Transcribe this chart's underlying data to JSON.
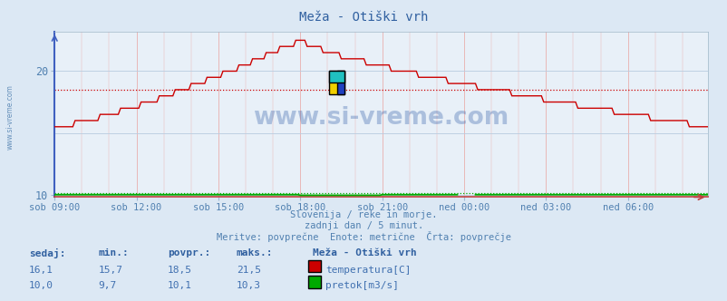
{
  "title": "Meža - Otiški vrh",
  "bg_color": "#dce8f4",
  "plot_bg_color": "#e8f0f8",
  "grid_color_h": "#b8cce0",
  "grid_color_v": "#e8b8b8",
  "left_border_color": "#4060c0",
  "bottom_border_color": "#c04040",
  "xlabel_color": "#5080b0",
  "title_color": "#3060a0",
  "watermark": "www.si-vreme.com",
  "subtitle_lines": [
    "Slovenija / reke in morje.",
    "zadnji dan / 5 minut.",
    "Meritve: povprečne  Enote: metrične  Črta: povprečje"
  ],
  "xticklabels": [
    "sob 09:00",
    "sob 12:00",
    "sob 15:00",
    "sob 18:00",
    "sob 21:00",
    "ned 00:00",
    "ned 03:00",
    "ned 06:00"
  ],
  "xtick_positions": [
    0,
    36,
    72,
    108,
    144,
    180,
    216,
    252
  ],
  "total_points": 288,
  "ylim": [
    9.8,
    23.2
  ],
  "yticks": [
    10,
    20
  ],
  "avg_temp": 18.5,
  "temp_color": "#cc0000",
  "flow_color": "#00aa00",
  "table_headers": [
    "sedaj:",
    "min.:",
    "povpr.:",
    "maks.:"
  ],
  "table_row1_vals": [
    "16,1",
    "15,7",
    "18,5",
    "21,5"
  ],
  "table_row2_vals": [
    "10,0",
    "9,7",
    "10,1",
    "10,3"
  ],
  "legend_title": "Meža - Otiški vrh",
  "legend_items": [
    "temperatura[C]",
    "pretok[m3/s]"
  ],
  "legend_colors": [
    "#cc0000",
    "#00aa00"
  ],
  "table_col_color": "#3060a0",
  "table_val_color": "#4070b0"
}
